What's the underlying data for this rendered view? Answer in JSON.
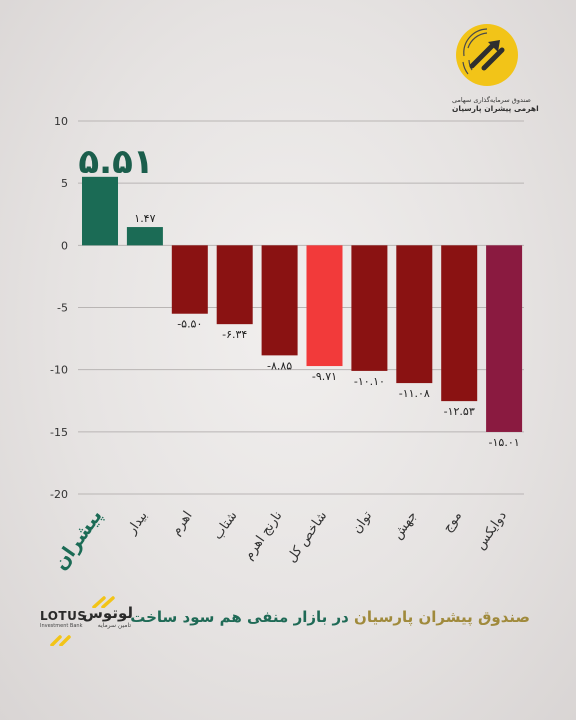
{
  "chart_data": {
    "type": "bar",
    "categories": [
      "پیشران",
      "بیدار",
      "اهرم",
      "شتاب",
      "نارنج اهرم",
      "شاخص کل",
      "توان",
      "جهش",
      "موج",
      "دوایکس"
    ],
    "values": [
      5.51,
      1.47,
      -5.5,
      -6.34,
      -8.85,
      -9.71,
      -10.1,
      -11.08,
      -12.53,
      -15.01
    ],
    "value_labels": [
      "۵.۵۱",
      "۱.۴۷",
      "-۵.۵۰",
      "-۶.۳۴",
      "-۸.۸۵",
      "-۹.۷۱",
      "-۱۰.۱۰",
      "-۱۱.۰۸",
      "-۱۲.۵۳",
      "-۱۵.۰۱"
    ],
    "colors": [
      "#1b6b55",
      "#1b6b55",
      "#8a1212",
      "#8a1212",
      "#8a1212",
      "#f23a3a",
      "#8a1212",
      "#8a1212",
      "#8a1212",
      "#8a1a40"
    ],
    "ylim": [
      -20,
      10
    ],
    "yticks": [
      10,
      5,
      0,
      -5,
      -10,
      -15,
      -20
    ],
    "ytick_labels": [
      "10",
      "5",
      "0",
      "-5",
      "-10",
      "-15",
      "-20"
    ],
    "grid": true,
    "title": "",
    "xlabel": "",
    "ylabel": ""
  },
  "caption": {
    "brand": "صندوق پیشران پارسیان",
    "rest": " در بازار منفی هم سود ساخت"
  },
  "top_logo": {
    "line1": "صندوق سرمایه‌گذاری سهامی",
    "line2": "اهرمی پیشران پارسیان"
  },
  "lotus_logo": {
    "fa": "لوتوس",
    "en": "LOTUS",
    "sub_en": "Investment Bank",
    "sub_fa": "تامین سرمایه"
  },
  "colors": {
    "positive": "#1b6b55",
    "negative": "#8a1212",
    "index": "#f23a3a",
    "accent": "#f2c418"
  }
}
